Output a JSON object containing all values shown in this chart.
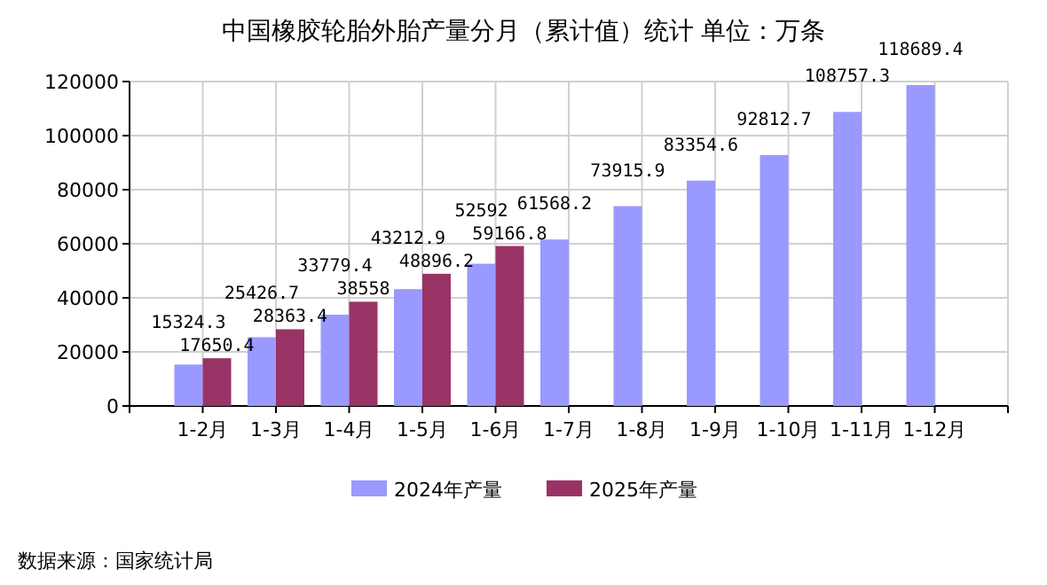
{
  "chart_data": {
    "type": "bar",
    "title": "中国橡胶轮胎外胎产量分月（累计值）统计  单位：万条",
    "categories": [
      "1-2月",
      "1-3月",
      "1-4月",
      "1-5月",
      "1-6月",
      "1-7月",
      "1-8月",
      "1-9月",
      "1-10月",
      "1-11月",
      "1-12月"
    ],
    "series": [
      {
        "name": "2024年产量",
        "color": "#9999ff",
        "values": [
          15324.3,
          25426.7,
          33779.4,
          43212.9,
          52592,
          61568.2,
          73915.9,
          83354.6,
          92812.7,
          108757.3,
          118689.4
        ]
      },
      {
        "name": "2025年产量",
        "color": "#993366",
        "values": [
          17650.4,
          28363.4,
          38558,
          48896.2,
          59166.8,
          null,
          null,
          null,
          null,
          null,
          null
        ]
      }
    ],
    "ylim": [
      0,
      120000
    ],
    "yticks": [
      0,
      20000,
      40000,
      60000,
      80000,
      100000,
      120000
    ],
    "grid": true,
    "legend": "bottom",
    "data_labels": true,
    "annotations": [
      "数据来源：国家统计局"
    ]
  }
}
